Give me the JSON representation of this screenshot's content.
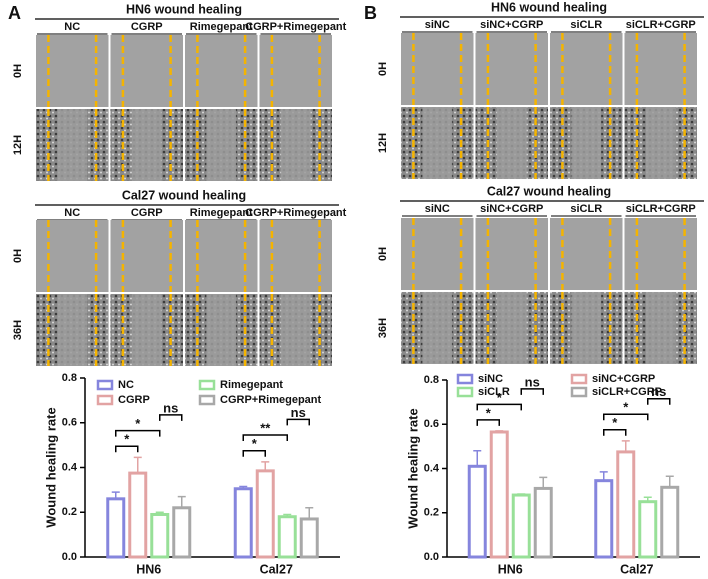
{
  "panels": [
    {
      "letter": "A",
      "sections": [
        {
          "title": "HN6  wound healing",
          "columns": [
            "NC",
            "CGRP",
            "Rimegepant",
            "CGRP+Rimegepant"
          ],
          "rows": [
            "0H",
            "12H"
          ]
        },
        {
          "title": "Cal27  wound healing",
          "columns": [
            "NC",
            "CGRP",
            "Rimegepant",
            "CGRP+Rimegepant"
          ],
          "rows": [
            "0H",
            "36H"
          ]
        }
      ]
    },
    {
      "letter": "B",
      "sections": [
        {
          "title": "HN6   wound  healing",
          "columns": [
            "siNC",
            "siNC+CGRP",
            "siCLR",
            "siCLR+CGRP"
          ],
          "rows": [
            "0H",
            "12H"
          ]
        },
        {
          "title": "Cal27   wound  healing",
          "columns": [
            "siNC",
            "siNC+CGRP",
            "siCLR",
            "siCLR+CGRP"
          ],
          "rows": [
            "0H",
            "36H"
          ]
        }
      ]
    }
  ],
  "chart_data": [
    {
      "type": "bar",
      "ylabel": "Wound healing rate",
      "categories": [
        "HN6",
        "Cal27"
      ],
      "series": [
        {
          "name": "NC",
          "color": "#8585dd",
          "values": [
            0.26,
            0.305
          ],
          "errors": [
            0.03,
            0.01
          ]
        },
        {
          "name": "CGRP",
          "color": "#e2a3a3",
          "values": [
            0.375,
            0.385
          ],
          "errors": [
            0.07,
            0.04
          ]
        },
        {
          "name": "Rimegepant",
          "color": "#98e098",
          "values": [
            0.19,
            0.18
          ],
          "errors": [
            0.01,
            0.01
          ]
        },
        {
          "name": "CGRP+Rimegepant",
          "color": "#a8a8a8",
          "values": [
            0.22,
            0.17
          ],
          "errors": [
            0.05,
            0.05
          ]
        }
      ],
      "annotations": [
        {
          "category": 0,
          "from": 0,
          "to": 1,
          "text": "*"
        },
        {
          "category": 0,
          "from": 0,
          "to": 2,
          "text": "*"
        },
        {
          "category": 0,
          "from": 2,
          "to": 3,
          "text": "ns"
        },
        {
          "category": 1,
          "from": 0,
          "to": 1,
          "text": "*"
        },
        {
          "category": 1,
          "from": 0,
          "to": 2,
          "text": "**"
        },
        {
          "category": 1,
          "from": 2,
          "to": 3,
          "text": "ns"
        }
      ],
      "ylim": [
        0,
        0.8
      ],
      "yticks": [
        {
          "value": 0,
          "label": "0.0"
        },
        0.2,
        0.4,
        0.6,
        0.8
      ]
    },
    {
      "type": "bar",
      "ylabel": "Wound healing rate",
      "categories": [
        "HN6",
        "Cal27"
      ],
      "series": [
        {
          "name": "siNC",
          "color": "#8585dd",
          "values": [
            0.41,
            0.345
          ],
          "errors": [
            0.07,
            0.04
          ]
        },
        {
          "name": "siNC+CGRP",
          "color": "#e2a3a3",
          "values": [
            0.565,
            0.475
          ],
          "errors": [
            0.005,
            0.05
          ]
        },
        {
          "name": "siCLR",
          "color": "#98e098",
          "values": [
            0.28,
            0.25
          ],
          "errors": [
            0.005,
            0.02
          ]
        },
        {
          "name": "siCLR+CGRP",
          "color": "#a8a8a8",
          "values": [
            0.31,
            0.315
          ],
          "errors": [
            0.05,
            0.05
          ]
        }
      ],
      "annotations": [
        {
          "category": 0,
          "from": 0,
          "to": 1,
          "text": "*"
        },
        {
          "category": 0,
          "from": 0,
          "to": 2,
          "text": "*"
        },
        {
          "category": 0,
          "from": 2,
          "to": 3,
          "text": "ns"
        },
        {
          "category": 1,
          "from": 0,
          "to": 1,
          "text": "*"
        },
        {
          "category": 1,
          "from": 0,
          "to": 2,
          "text": "*"
        },
        {
          "category": 1,
          "from": 2,
          "to": 3,
          "text": "ns"
        }
      ],
      "ylim": [
        0,
        0.8
      ],
      "yticks": [
        {
          "value": 0,
          "label": "0.0"
        },
        0.2,
        0.4,
        0.6,
        0.8
      ]
    }
  ]
}
